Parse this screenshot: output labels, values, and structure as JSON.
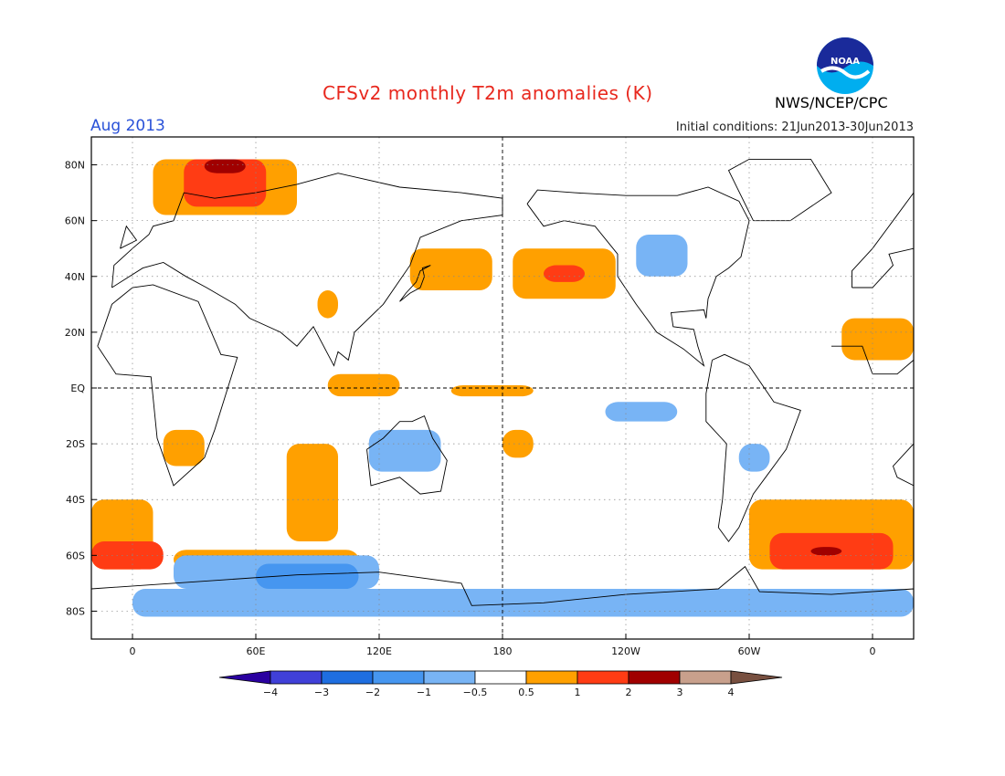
{
  "title": "CFSv2 monthly T2m anomalies (K)",
  "month_label": "Aug 2013",
  "initial_conditions": "Initial conditions: 21Jun2013-30Jun2013",
  "agency": "NWS/NCEP/CPC",
  "logo": {
    "icon": "noaa-logo",
    "text": "NOAA"
  },
  "map": {
    "projection": "equirectangular",
    "lon_range": [
      -20,
      380
    ],
    "lat_range": [
      -90,
      90
    ],
    "lat_ticks": [
      {
        "lat": 80,
        "label": "80N"
      },
      {
        "lat": 60,
        "label": "60N"
      },
      {
        "lat": 40,
        "label": "40N"
      },
      {
        "lat": 20,
        "label": "20N"
      },
      {
        "lat": 0,
        "label": "EQ"
      },
      {
        "lat": -20,
        "label": "20S"
      },
      {
        "lat": -40,
        "label": "40S"
      },
      {
        "lat": -60,
        "label": "60S"
      },
      {
        "lat": -80,
        "label": "80S"
      }
    ],
    "lon_ticks": [
      {
        "lon": 0,
        "label": "0"
      },
      {
        "lon": 60,
        "label": "60E"
      },
      {
        "lon": 120,
        "label": "120E"
      },
      {
        "lon": 180,
        "label": "180"
      },
      {
        "lon": 240,
        "label": "120W"
      },
      {
        "lon": 300,
        "label": "60W"
      },
      {
        "lon": 360,
        "label": "0"
      }
    ],
    "grid": "dotted",
    "reference_lines": [
      "equator",
      "dateline"
    ]
  },
  "colorbar": {
    "bins": [
      {
        "color": "#2a00a0"
      },
      {
        "color": "#4040d8"
      },
      {
        "color": "#1e6ee0"
      },
      {
        "color": "#4696f0"
      },
      {
        "color": "#78b4f5"
      },
      {
        "color": "#ffffff"
      },
      {
        "color": "#ffa000"
      },
      {
        "color": "#ff3c14"
      },
      {
        "color": "#a00000"
      },
      {
        "color": "#c8a08c"
      },
      {
        "color": "#785040"
      }
    ],
    "tick_labels": [
      "−4",
      "−3",
      "−2",
      "−1",
      "−0.5",
      "0.5",
      "1",
      "2",
      "3",
      "4"
    ]
  },
  "anomaly_regions": [
    {
      "level": 1,
      "lon": [
        -20,
        10
      ],
      "lat": [
        -65,
        -40
      ]
    },
    {
      "level": 2,
      "lon": [
        -20,
        15
      ],
      "lat": [
        -65,
        -55
      ]
    },
    {
      "level": 1,
      "lon": [
        20,
        110
      ],
      "lat": [
        -65,
        -58
      ]
    },
    {
      "level": 1,
      "lon": [
        75,
        100
      ],
      "lat": [
        -55,
        -20
      ]
    },
    {
      "level": 1,
      "lon": [
        15,
        35
      ],
      "lat": [
        -28,
        -15
      ]
    },
    {
      "level": 1,
      "lon": [
        10,
        80
      ],
      "lat": [
        62,
        82
      ]
    },
    {
      "level": 2,
      "lon": [
        25,
        65
      ],
      "lat": [
        65,
        82
      ]
    },
    {
      "level": 3,
      "lon": [
        35,
        55
      ],
      "lat": [
        77,
        82
      ]
    },
    {
      "level": 1,
      "lon": [
        90,
        100
      ],
      "lat": [
        25,
        35
      ]
    },
    {
      "level": 1,
      "lon": [
        135,
        175
      ],
      "lat": [
        35,
        50
      ]
    },
    {
      "level": 1,
      "lon": [
        185,
        235
      ],
      "lat": [
        32,
        50
      ]
    },
    {
      "level": 2,
      "lon": [
        200,
        220
      ],
      "lat": [
        38,
        44
      ]
    },
    {
      "level": 1,
      "lon": [
        95,
        130
      ],
      "lat": [
        -3,
        5
      ]
    },
    {
      "level": 1,
      "lon": [
        155,
        195
      ],
      "lat": [
        -3,
        1
      ]
    },
    {
      "level": 1,
      "lon": [
        180,
        195
      ],
      "lat": [
        -25,
        -15
      ]
    },
    {
      "level": 1,
      "lon": [
        300,
        380
      ],
      "lat": [
        -65,
        -40
      ]
    },
    {
      "level": 2,
      "lon": [
        310,
        370
      ],
      "lat": [
        -65,
        -52
      ]
    },
    {
      "level": 3,
      "lon": [
        330,
        345
      ],
      "lat": [
        -60,
        -57
      ]
    },
    {
      "level": 1,
      "lon": [
        345,
        380
      ],
      "lat": [
        10,
        25
      ]
    },
    {
      "level": -1,
      "lon": [
        115,
        150
      ],
      "lat": [
        -30,
        -15
      ]
    },
    {
      "level": -1,
      "lon": [
        20,
        120
      ],
      "lat": [
        -72,
        -60
      ]
    },
    {
      "level": -2,
      "lon": [
        60,
        110
      ],
      "lat": [
        -72,
        -63
      ]
    },
    {
      "level": -1,
      "lon": [
        0,
        380
      ],
      "lat": [
        -82,
        -72
      ]
    },
    {
      "level": -1,
      "lon": [
        245,
        270
      ],
      "lat": [
        40,
        55
      ]
    },
    {
      "level": -1,
      "lon": [
        230,
        265
      ],
      "lat": [
        -12,
        -5
      ]
    },
    {
      "level": -1,
      "lon": [
        295,
        310
      ],
      "lat": [
        -30,
        -20
      ]
    }
  ]
}
